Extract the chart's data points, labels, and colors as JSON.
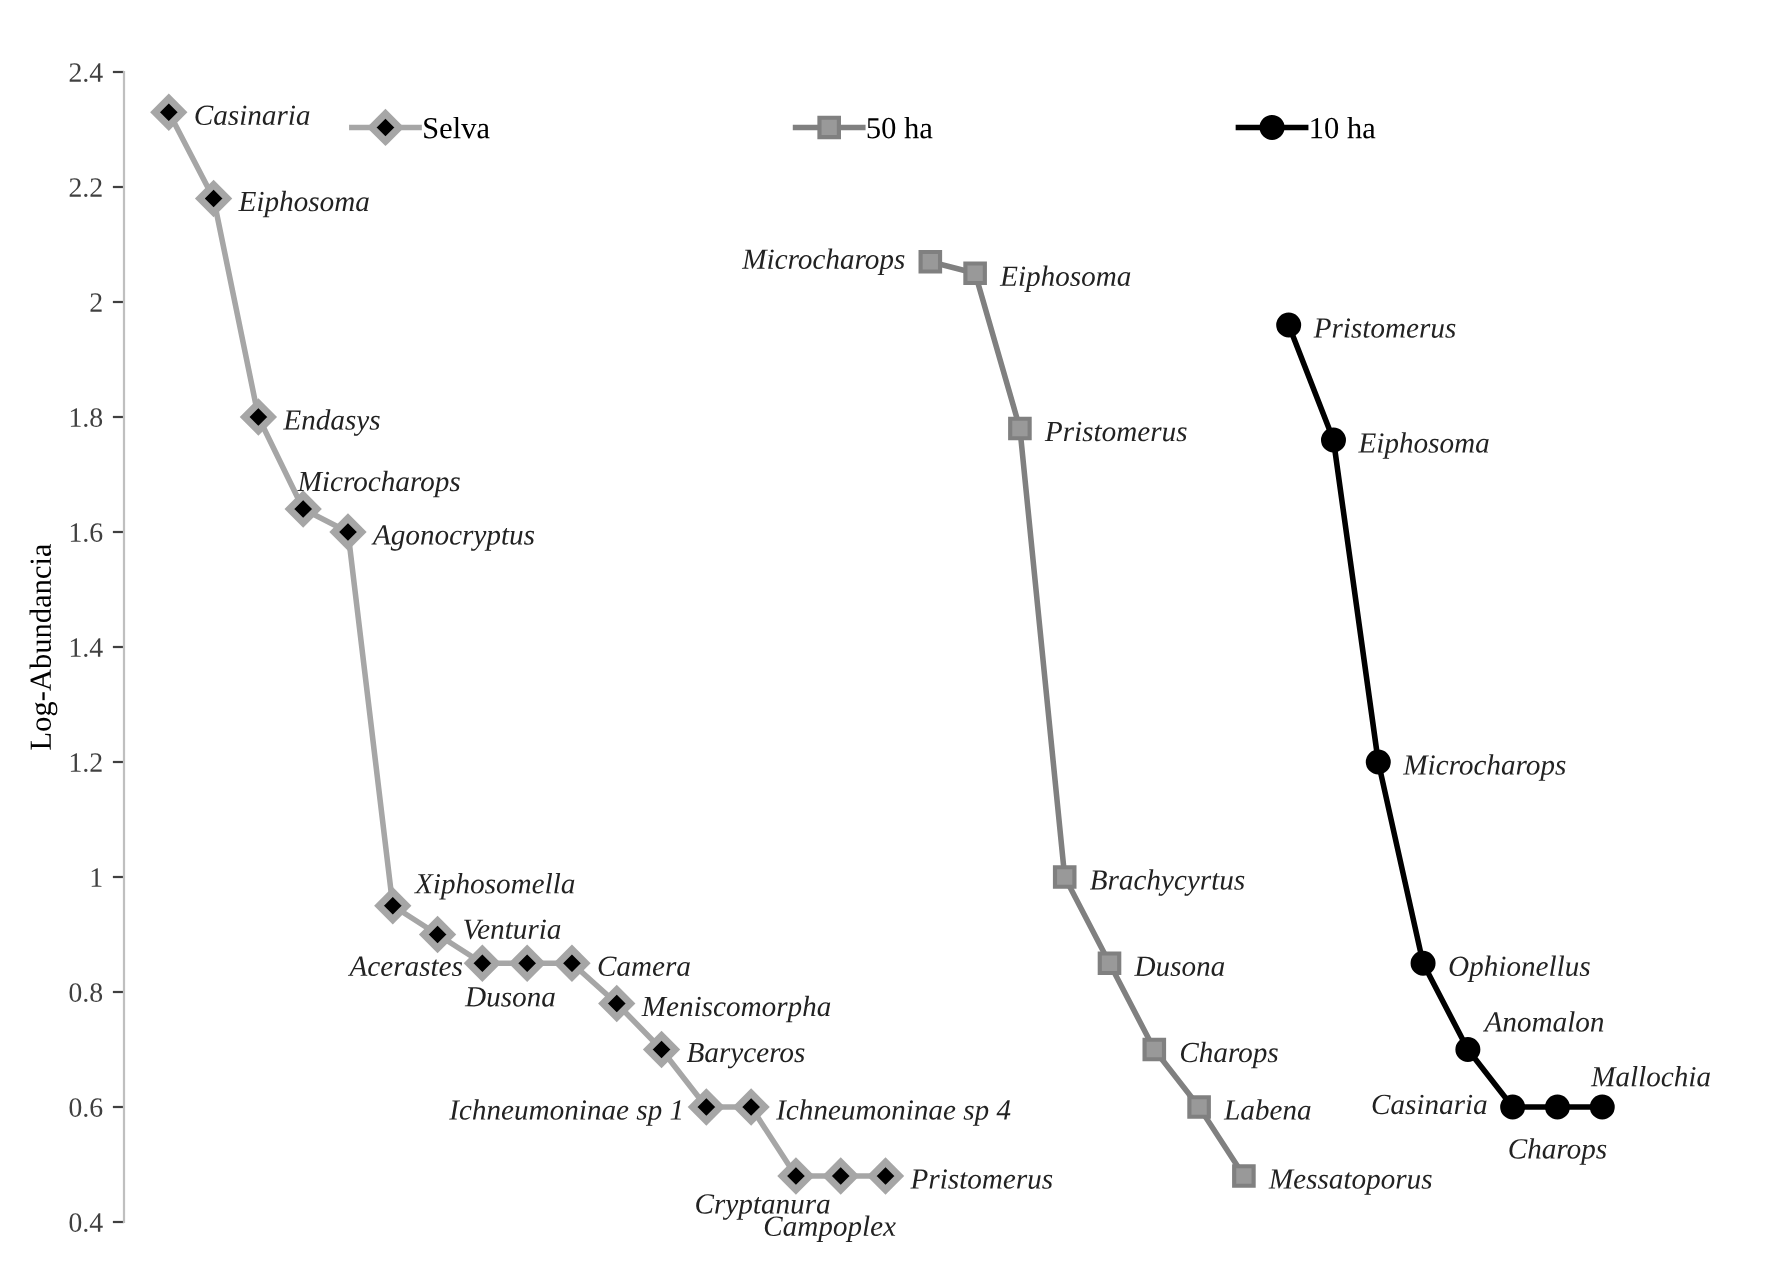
{
  "chart_data": {
    "type": "line",
    "ylabel": "Log-Abundancia",
    "categories": [
      null,
      null,
      null,
      null,
      null,
      null,
      null,
      null,
      null,
      null,
      null,
      null,
      null,
      null,
      null,
      null,
      null,
      null,
      null,
      null,
      null,
      null,
      null,
      null,
      null,
      null,
      null,
      null,
      null,
      null,
      null,
      null,
      null
    ],
    "ylim": [
      0.4,
      2.4
    ],
    "yticks": [
      0.4,
      0.6,
      0.8,
      1,
      1.2,
      1.4,
      1.6,
      1.8,
      2,
      2.2,
      2.4
    ],
    "tick_labels": "y",
    "grid": false,
    "legend": "top",
    "line_style": "solid",
    "series": [
      {
        "name": "Selva",
        "color": "#a6a6a6",
        "marker": "diamond",
        "values": [
          2.33,
          2.18,
          1.8,
          1.64,
          1.6,
          0.95,
          0.9,
          0.85,
          0.85,
          0.85,
          0.78,
          0.7,
          0.6,
          0.6,
          0.48,
          0.48,
          0.48,
          null,
          null,
          null,
          null,
          null,
          null,
          null,
          null,
          null,
          null,
          null,
          null,
          null,
          null,
          null,
          null
        ]
      },
      {
        "name": "50 ha",
        "color": "#808080",
        "marker": "square",
        "values": [
          null,
          null,
          null,
          null,
          null,
          null,
          null,
          null,
          null,
          null,
          null,
          null,
          null,
          null,
          null,
          null,
          null,
          2.07,
          2.05,
          1.78,
          1,
          0.85,
          0.7,
          0.6,
          0.48,
          null,
          null,
          null,
          null,
          null,
          null,
          null,
          null
        ]
      },
      {
        "name": "10 ha",
        "color": "#000000",
        "marker": "circle",
        "values": [
          null,
          null,
          null,
          null,
          null,
          null,
          null,
          null,
          null,
          null,
          null,
          null,
          null,
          null,
          null,
          null,
          null,
          null,
          null,
          null,
          null,
          null,
          null,
          null,
          null,
          1.96,
          1.76,
          1.2,
          0.85,
          0.7,
          0.6,
          0.6,
          0.6
        ]
      }
    ],
    "annotations": [
      "Casinaria",
      "Eiphosoma",
      "Endasys",
      "Microcharops",
      "Agonocryptus",
      "Xiphosomella",
      "Venturia",
      "Acerastes",
      "Dusona",
      "Camera",
      "Meniscomorpha",
      "Baryceros",
      "Ichneumoninae sp 1",
      "Ichneumoninae sp 4",
      "Cryptanura",
      "Campoplex",
      "Pristomerus",
      "Microcharops",
      "Eiphosoma",
      "Pristomerus",
      "Brachycyrtus",
      "Dusona",
      "Charops",
      "Labena",
      "Messatoporus",
      "Pristomerus",
      "Eiphosoma",
      "Microcharops",
      "Ophionellus",
      "Anomalon",
      "Casinaria",
      "Charops",
      "Mallochia"
    ]
  }
}
